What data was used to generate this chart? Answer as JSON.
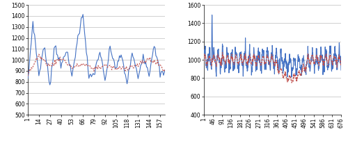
{
  "left_ylim": [
    500,
    1500
  ],
  "left_yticks": [
    500,
    600,
    700,
    800,
    900,
    1000,
    1100,
    1200,
    1300,
    1400,
    1500
  ],
  "left_xticks": [
    1,
    14,
    27,
    40,
    53,
    66,
    79,
    92,
    105,
    118,
    131,
    144,
    157
  ],
  "right_ylim": [
    400,
    1600
  ],
  "right_yticks": [
    400,
    600,
    800,
    1000,
    1200,
    1400,
    1600
  ],
  "right_xticks": [
    1,
    46,
    91,
    136,
    181,
    226,
    271,
    316,
    361,
    406,
    451,
    496,
    541,
    586,
    631,
    676
  ],
  "actual_color": "#4472C4",
  "predicted_color": "#C0504D",
  "actual_linewidth": 0.8,
  "predicted_linewidth": 0.8,
  "legend_fontsize": 7.5,
  "tick_fontsize": 5.5,
  "bg_color": "#FFFFFF",
  "grid_color": "#BEBEBE"
}
